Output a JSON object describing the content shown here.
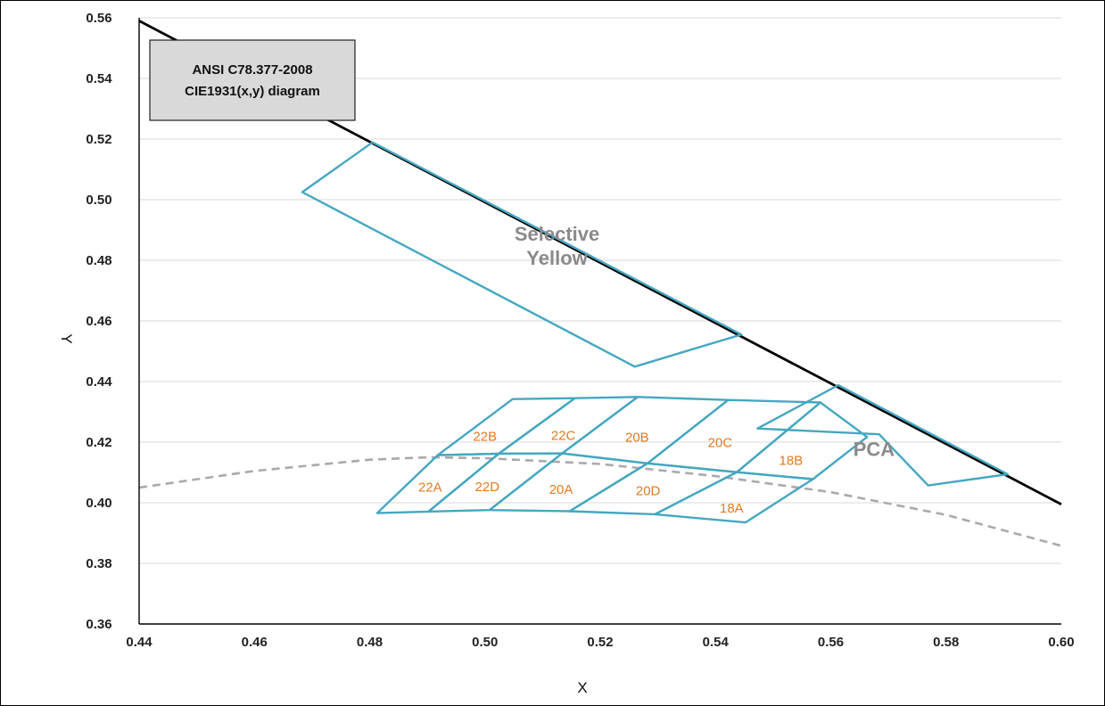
{
  "chart_data": {
    "type": "line",
    "title_box": [
      "ANSI C78.377-2008",
      "CIE1931(x,y)  diagram"
    ],
    "xlabel": "X",
    "ylabel": "Y",
    "xlim": [
      0.44,
      0.6
    ],
    "ylim": [
      0.36,
      0.56
    ],
    "x_ticks": [
      "0.44",
      "0.46",
      "0.48",
      "0.50",
      "0.52",
      "0.54",
      "0.56",
      "0.58",
      "0.60"
    ],
    "y_ticks": [
      "0.36",
      "0.38",
      "0.40",
      "0.42",
      "0.44",
      "0.46",
      "0.48",
      "0.50",
      "0.52",
      "0.54",
      "0.56"
    ],
    "grid": "horizontal",
    "spectrum_locus": [
      [
        0.44,
        0.559
      ],
      [
        0.6,
        0.3995
      ]
    ],
    "planckian_locus": [
      [
        0.44,
        0.405
      ],
      [
        0.46,
        0.4105
      ],
      [
        0.48,
        0.4142
      ],
      [
        0.49,
        0.415
      ],
      [
        0.5,
        0.4147
      ],
      [
        0.52,
        0.4128
      ],
      [
        0.54,
        0.4088
      ],
      [
        0.56,
        0.4035
      ],
      [
        0.58,
        0.396
      ],
      [
        0.6,
        0.3858
      ]
    ],
    "regions": [
      {
        "name": "Selective Yellow",
        "label": [
          "Selective",
          "Yellow"
        ],
        "label_pos": [
          0.5125,
          0.4845
        ],
        "points": [
          [
            0.4683,
            0.5025
          ],
          [
            0.4805,
            0.5189
          ],
          [
            0.5445,
            0.4555
          ],
          [
            0.526,
            0.4449
          ]
        ]
      },
      {
        "name": "PCA",
        "label": [
          "PCA"
        ],
        "label_pos": [
          0.5675,
          0.4175
        ],
        "points": [
          [
            0.5473,
            0.4245
          ],
          [
            0.5613,
            0.4388
          ],
          [
            0.5907,
            0.4094
          ],
          [
            0.5769,
            0.4057
          ],
          [
            0.5684,
            0.4226
          ]
        ]
      },
      {
        "name": "22B",
        "label": [
          "22B"
        ],
        "label_pos": [
          0.5,
          0.4225
        ],
        "points": [
          [
            0.4918,
            0.4157
          ],
          [
            0.5048,
            0.4342
          ],
          [
            0.5156,
            0.4345
          ],
          [
            0.5024,
            0.4162
          ]
        ]
      },
      {
        "name": "22C",
        "label": [
          "22C"
        ],
        "label_pos": [
          0.5136,
          0.4228
        ],
        "points": [
          [
            0.5024,
            0.4162
          ],
          [
            0.5156,
            0.4345
          ],
          [
            0.5265,
            0.4349
          ],
          [
            0.5134,
            0.4163
          ]
        ]
      },
      {
        "name": "20B",
        "label": [
          "20B"
        ],
        "label_pos": [
          0.5264,
          0.4222
        ],
        "points": [
          [
            0.5134,
            0.4163
          ],
          [
            0.5265,
            0.4349
          ],
          [
            0.5422,
            0.4339
          ],
          [
            0.5282,
            0.413
          ]
        ]
      },
      {
        "name": "20C",
        "label": [
          "20C"
        ],
        "label_pos": [
          0.5408,
          0.4204
        ],
        "points": [
          [
            0.5282,
            0.413
          ],
          [
            0.5422,
            0.4339
          ],
          [
            0.5582,
            0.4331
          ],
          [
            0.5437,
            0.4101
          ]
        ]
      },
      {
        "name": "18B",
        "label": [
          "18B"
        ],
        "label_pos": [
          0.5531,
          0.4145
        ],
        "points": [
          [
            0.5437,
            0.4101
          ],
          [
            0.5582,
            0.4331
          ],
          [
            0.5663,
            0.4217
          ],
          [
            0.5569,
            0.4078
          ]
        ]
      },
      {
        "name": "22A",
        "label": [
          "22A"
        ],
        "label_pos": [
          0.4905,
          0.4057
        ],
        "points": [
          [
            0.4813,
            0.3966
          ],
          [
            0.4918,
            0.4157
          ],
          [
            0.5024,
            0.4162
          ],
          [
            0.4902,
            0.3971
          ]
        ]
      },
      {
        "name": "22D",
        "label": [
          "22D"
        ],
        "label_pos": [
          0.5004,
          0.4059
        ],
        "points": [
          [
            0.4902,
            0.3971
          ],
          [
            0.5024,
            0.4162
          ],
          [
            0.5134,
            0.4163
          ],
          [
            0.5008,
            0.3976
          ]
        ]
      },
      {
        "name": "20A",
        "label": [
          "20A"
        ],
        "label_pos": [
          0.5132,
          0.405
        ],
        "points": [
          [
            0.5008,
            0.3976
          ],
          [
            0.5134,
            0.4163
          ],
          [
            0.5282,
            0.413
          ],
          [
            0.5147,
            0.3972
          ]
        ]
      },
      {
        "name": "20D",
        "label": [
          "20D"
        ],
        "label_pos": [
          0.5283,
          0.4045
        ],
        "points": [
          [
            0.5147,
            0.3972
          ],
          [
            0.5282,
            0.413
          ],
          [
            0.5437,
            0.4101
          ],
          [
            0.5295,
            0.3962
          ]
        ]
      },
      {
        "name": "18A",
        "label": [
          "18A"
        ],
        "label_pos": [
          0.5428,
          0.3988
        ],
        "points": [
          [
            0.5295,
            0.3962
          ],
          [
            0.5437,
            0.4101
          ],
          [
            0.5569,
            0.4078
          ],
          [
            0.5452,
            0.3935
          ]
        ]
      }
    ]
  },
  "colors": {
    "region_stroke": "#45a7c0",
    "bin_label": "#e07a1f",
    "region_label": "#8a8a8a",
    "grid": "#d9d9d9",
    "spectrum_locus": "#000000",
    "planckian_locus": "#aaaaaa",
    "title_box_fill": "#d9d9d9"
  }
}
